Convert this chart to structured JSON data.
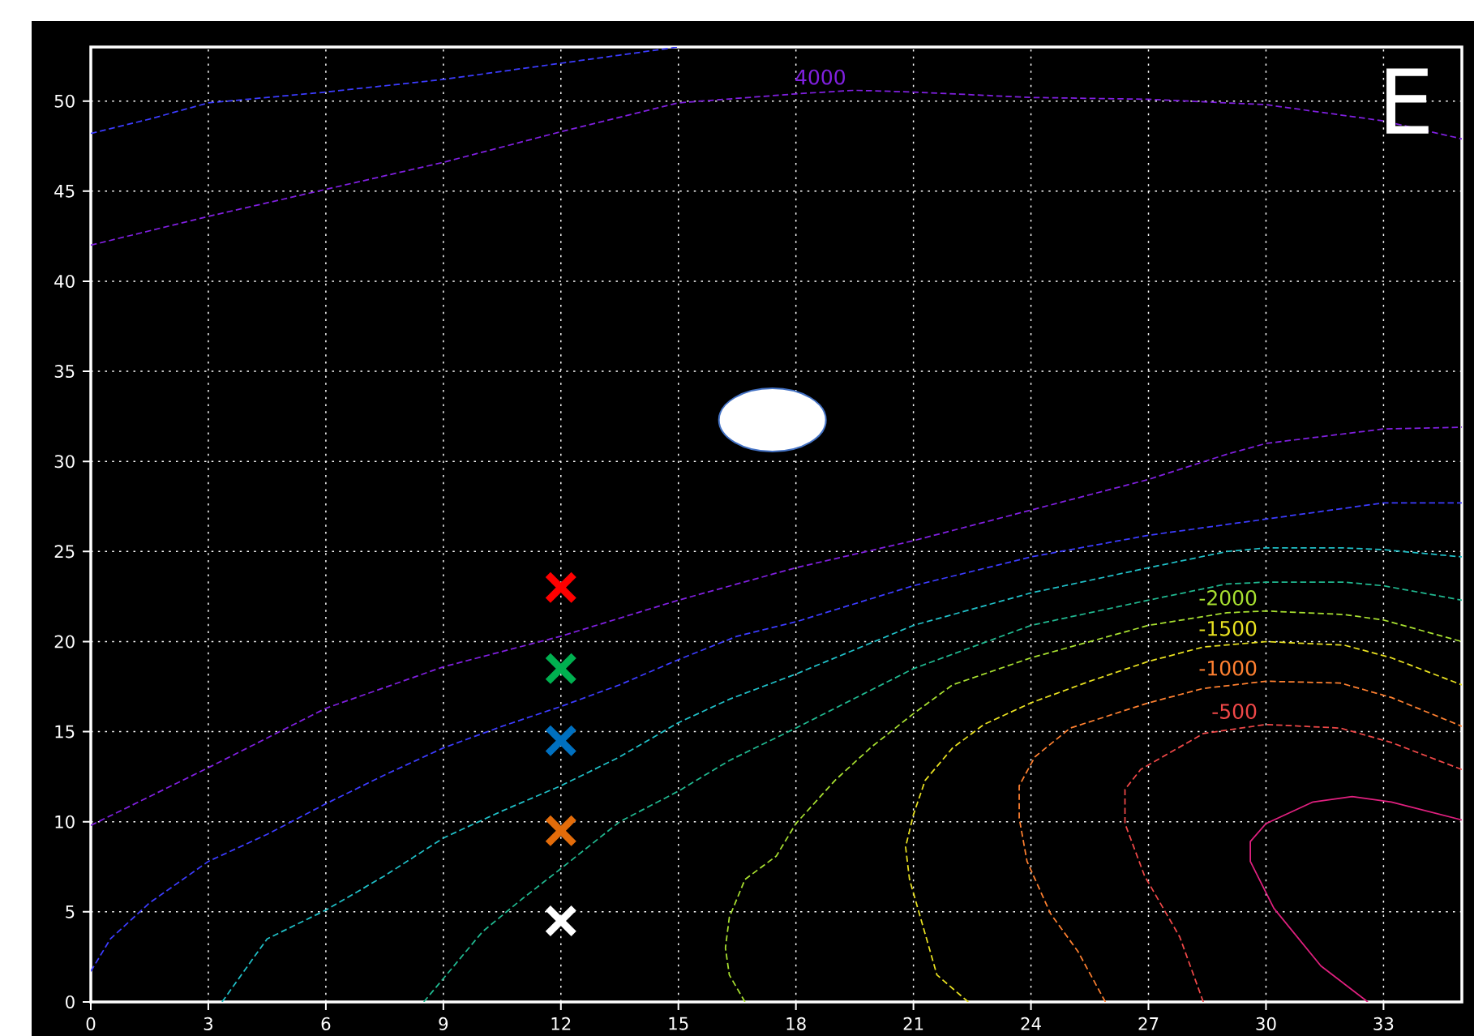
{
  "chart_data": {
    "type": "line",
    "xlim": [
      0,
      35
    ],
    "ylim": [
      0,
      53
    ],
    "xticks": [
      0,
      3,
      6,
      9,
      12,
      15,
      18,
      21,
      24,
      27,
      30,
      33
    ],
    "yticks": [
      0,
      5,
      10,
      15,
      20,
      25,
      30,
      35,
      40,
      45,
      50
    ],
    "grid": true,
    "annotations": [
      "E"
    ],
    "series": [
      {
        "color": "#3c3cff",
        "line_style": "dashed",
        "x": [
          0,
          1.5,
          3,
          6,
          9,
          12,
          15
        ],
        "values": [
          48.2,
          49.0,
          49.9,
          50.5,
          51.2,
          52.1,
          53.0
        ]
      },
      {
        "name": "4000",
        "color": "#8020e0",
        "line_style": "dashed",
        "x": [
          0,
          3,
          6,
          9,
          12,
          15,
          18,
          19.5,
          21,
          24,
          27,
          30,
          33,
          35
        ],
        "values": [
          42.0,
          43.6,
          45.1,
          46.6,
          48.3,
          49.9,
          50.4,
          50.6,
          50.5,
          50.2,
          50.1,
          49.8,
          48.9,
          47.9
        ]
      },
      {
        "color": "#8020e0",
        "line_style": "dashed",
        "x": [
          0,
          3,
          6,
          9,
          12,
          15,
          18,
          21,
          24,
          27,
          29,
          30,
          33,
          35
        ],
        "values": [
          9.8,
          13.0,
          16.3,
          18.6,
          20.3,
          22.3,
          24.1,
          25.6,
          27.3,
          29.0,
          30.4,
          31.0,
          31.8,
          31.9
        ]
      },
      {
        "color": "#3c3cff",
        "line_style": "dashed",
        "x": [
          0,
          0.5,
          1.5,
          3,
          4.5,
          6,
          7.5,
          9,
          10.5,
          12,
          13.5,
          15,
          16.5,
          18,
          21,
          24,
          27,
          30,
          33,
          35
        ],
        "values": [
          1.7,
          3.5,
          5.5,
          7.8,
          9.3,
          11.0,
          12.6,
          14.1,
          15.3,
          16.4,
          17.6,
          19.0,
          20.3,
          21.1,
          23.1,
          24.7,
          25.9,
          26.8,
          27.7,
          27.7
        ]
      },
      {
        "color": "#20c0c8",
        "line_style": "dashed",
        "x": [
          3.35,
          4.5,
          6,
          7.5,
          9,
          10.5,
          12,
          13.5,
          15,
          16.3,
          18,
          21,
          24,
          27,
          29,
          30,
          32,
          33,
          35
        ],
        "values": [
          0,
          3.5,
          5.1,
          7.0,
          9.1,
          10.6,
          12.0,
          13.6,
          15.5,
          16.8,
          18.2,
          20.9,
          22.7,
          24.1,
          25.0,
          25.2,
          25.2,
          25.1,
          24.7
        ]
      },
      {
        "color": "#20b890",
        "line_style": "dashed",
        "x": [
          8.5,
          10,
          11,
          12,
          13.5,
          15,
          16.3,
          18,
          21,
          24,
          27,
          29,
          30,
          32,
          33,
          35
        ],
        "values": [
          0,
          3.9,
          5.7,
          7.4,
          10.0,
          11.7,
          13.4,
          15.2,
          18.5,
          20.9,
          22.3,
          23.2,
          23.3,
          23.3,
          23.1,
          22.3
        ]
      },
      {
        "name": "-2000",
        "color": "#a8e030",
        "line_style": "dashed",
        "x": [
          16.7,
          16.3,
          16.2,
          16.3,
          16.7,
          17.5,
          18,
          19,
          19.9,
          21,
          22,
          24,
          27,
          29,
          30,
          32,
          33,
          35
        ],
        "values": [
          0,
          1.5,
          3,
          4.7,
          6.8,
          8.1,
          9.9,
          12.3,
          14.1,
          16.0,
          17.6,
          19.1,
          20.9,
          21.6,
          21.7,
          21.5,
          21.2,
          20.0
        ]
      },
      {
        "name": "-1500",
        "color": "#e8e020",
        "line_style": "dashed",
        "x": [
          22.4,
          21.6,
          20.9,
          20.8,
          21,
          21.3,
          22,
          22.8,
          24,
          25.5,
          27,
          28.4,
          30,
          32,
          33.2,
          35
        ],
        "values": [
          0,
          1.5,
          6.8,
          8.6,
          10.4,
          12.3,
          14.1,
          15.4,
          16.6,
          17.8,
          18.9,
          19.7,
          20.0,
          19.8,
          19.1,
          17.6
        ]
      },
      {
        "name": "-1000",
        "color": "#ff8030",
        "line_style": "dashed",
        "x": [
          25.9,
          25.2,
          24.5,
          23.9,
          23.7,
          23.7,
          24.1,
          25,
          27,
          28.4,
          30,
          31.9,
          33.2,
          35
        ],
        "values": [
          0,
          2.8,
          4.9,
          7.8,
          10.2,
          12.0,
          13.6,
          15.2,
          16.6,
          17.4,
          17.8,
          17.7,
          16.9,
          15.3
        ]
      },
      {
        "name": "-500",
        "color": "#f04848",
        "line_style": "dashed",
        "x": [
          28.4,
          27.8,
          26.9,
          26.4,
          26.4,
          26.8,
          28.4,
          30,
          31.9,
          33.2,
          35
        ],
        "values": [
          0,
          3.6,
          7.0,
          9.9,
          11.8,
          12.9,
          14.9,
          15.4,
          15.2,
          14.4,
          12.9
        ]
      },
      {
        "color": "#e0207f",
        "line_style": "solid",
        "x": [
          32.6,
          31.4,
          30.2,
          29.6,
          29.6,
          30,
          31.2,
          32.2,
          33.2,
          35
        ],
        "values": [
          0,
          2.0,
          5.2,
          7.8,
          8.9,
          9.9,
          11.1,
          11.4,
          11.1,
          10.1
        ]
      },
      {
        "type": "scatter",
        "marker": "cross",
        "x": [
          12,
          12,
          12,
          12,
          12
        ],
        "values": [
          23,
          18.5,
          14.5,
          9.5,
          4.5
        ],
        "colors": [
          "#ff0000",
          "#00b050",
          "#0070c0",
          "#e36c0a",
          "#ffffff"
        ]
      }
    ]
  }
}
